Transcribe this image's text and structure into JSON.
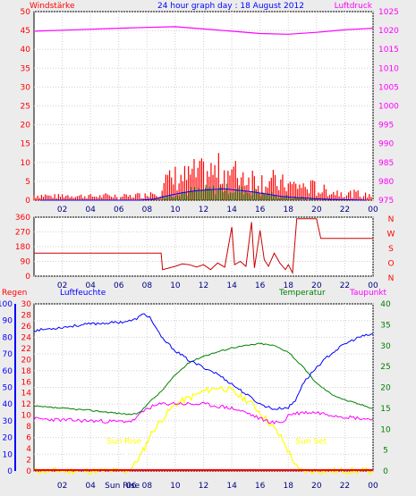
{
  "title": "24 hour graph day : 18 August 2012",
  "colors": {
    "wind": "#ff0000",
    "gust": "#ff0000",
    "wind_avg": "#0000ff",
    "wind_green": "#008000",
    "pressure": "#ff00ff",
    "direction": "#cc0000",
    "rain": "#ff0000",
    "humidity": "#0000ff",
    "temperature": "#008000",
    "dewpoint": "#ff00ff",
    "solar": "#ffff00",
    "axis_red": "#ff0000",
    "axis_magenta": "#ff00ff",
    "axis_blue": "#0000ff",
    "axis_green": "#008000",
    "grid": "#cfcfcf",
    "plot_bg": "#ffffff",
    "frame_bg": "#ececec"
  },
  "chart_data": [
    {
      "type": "bar",
      "title": "24 hour graph day : 18 August 2012",
      "left_axis_label": "Windstärke",
      "right_axis_label": "Luftdruck",
      "left_ylim": [
        0,
        50
      ],
      "left_ticks": [
        "0",
        "5",
        "10",
        "15",
        "20",
        "25",
        "30",
        "35",
        "40",
        "45",
        "50"
      ],
      "right_ylim": [
        975,
        1025
      ],
      "right_ticks": [
        "975",
        "980",
        "985",
        "990",
        "995",
        "1000",
        "1005",
        "1010",
        "1015",
        "1020",
        "1025"
      ],
      "x_ticks": [
        "02",
        "04",
        "06",
        "08",
        "10",
        "12",
        "14",
        "16",
        "18",
        "20",
        "22",
        "00"
      ],
      "grid": true,
      "wind_gust_hourly": [
        1.5,
        1.2,
        1.5,
        1.3,
        1.2,
        1.4,
        1.2,
        1.5,
        2.5,
        6,
        7,
        8,
        8.5,
        9,
        8,
        7,
        6,
        5,
        4.5,
        4,
        3,
        2.5,
        2,
        1.5
      ],
      "wind_avg_hourly": [
        0,
        0,
        0,
        0,
        0,
        0,
        0,
        0,
        0.3,
        1.2,
        2,
        2.5,
        2.8,
        3,
        2.6,
        2.2,
        1.6,
        1,
        0.7,
        0.5,
        0.3,
        0.2,
        0.1,
        0
      ],
      "pressure_points": [
        [
          0,
          1019.8
        ],
        [
          3,
          1020.2
        ],
        [
          6,
          1020.6
        ],
        [
          8,
          1020.8
        ],
        [
          10,
          1021.0
        ],
        [
          12,
          1020.4
        ],
        [
          14,
          1019.8
        ],
        [
          16,
          1019.2
        ],
        [
          18,
          1019.0
        ],
        [
          20,
          1019.5
        ],
        [
          22,
          1020.2
        ],
        [
          24,
          1020.6
        ]
      ]
    },
    {
      "type": "line",
      "left_ylim": [
        0,
        360
      ],
      "left_ticks": [
        "0",
        "90",
        "180",
        "270",
        "360"
      ],
      "right_labels": [
        "N",
        "W",
        "S",
        "O",
        "N"
      ],
      "x_ticks": [
        "02",
        "04",
        "06",
        "08",
        "10",
        "12",
        "14",
        "16",
        "18",
        "20",
        "22",
        "00"
      ],
      "grid": true,
      "direction_points": [
        [
          0,
          140
        ],
        [
          9,
          140
        ],
        [
          9.1,
          40
        ],
        [
          10,
          60
        ],
        [
          10.5,
          75
        ],
        [
          11,
          70
        ],
        [
          11.5,
          55
        ],
        [
          12,
          70
        ],
        [
          12.5,
          40
        ],
        [
          13,
          80
        ],
        [
          13.5,
          55
        ],
        [
          14,
          300
        ],
        [
          14.2,
          70
        ],
        [
          14.6,
          90
        ],
        [
          15,
          60
        ],
        [
          15.4,
          330
        ],
        [
          15.6,
          50
        ],
        [
          16,
          280
        ],
        [
          16.3,
          100
        ],
        [
          16.6,
          60
        ],
        [
          17,
          140
        ],
        [
          17.4,
          80
        ],
        [
          17.8,
          40
        ],
        [
          18,
          70
        ],
        [
          18.3,
          20
        ],
        [
          18.6,
          350
        ],
        [
          20,
          350
        ],
        [
          20.3,
          230
        ],
        [
          24,
          230
        ]
      ]
    },
    {
      "type": "line",
      "left_axis_label": "Regen",
      "humidity_axis_label": "Luftfeuchte",
      "temperature_axis_label": "Temperatur",
      "dewpoint_axis_label": "Taupunkt",
      "humidity_ylim": [
        0,
        100
      ],
      "humidity_ticks": [
        "0",
        "10",
        "20",
        "30",
        "40",
        "50",
        "60",
        "70",
        "80",
        "90",
        "100"
      ],
      "rain_ylim": [
        0,
        30
      ],
      "rain_ticks": [
        "0",
        "2",
        "4",
        "6",
        "8",
        "10",
        "12",
        "14",
        "16",
        "18",
        "20",
        "22",
        "24",
        "26",
        "28",
        "30"
      ],
      "temp_ylim": [
        0,
        40
      ],
      "temp_ticks": [
        "0",
        "5",
        "10",
        "15",
        "20",
        "25",
        "30",
        "35",
        "40"
      ],
      "x_ticks": [
        "02",
        "04",
        "Sun Rise",
        "06",
        "08",
        "10",
        "12",
        "14",
        "16",
        "18",
        "20",
        "22",
        "00"
      ],
      "annotations": [
        "Sun Rise",
        "Sun Set"
      ],
      "grid": true,
      "humidity_points": [
        [
          0,
          84
        ],
        [
          2,
          86
        ],
        [
          4,
          88
        ],
        [
          6,
          89
        ],
        [
          7,
          90
        ],
        [
          7.8,
          94
        ],
        [
          8.2,
          92
        ],
        [
          9,
          80
        ],
        [
          10,
          72
        ],
        [
          11,
          66
        ],
        [
          12,
          62
        ],
        [
          13,
          58
        ],
        [
          14,
          52
        ],
        [
          15,
          46
        ],
        [
          16,
          40
        ],
        [
          17,
          37
        ],
        [
          18,
          38
        ],
        [
          18.5,
          42
        ],
        [
          19,
          52
        ],
        [
          20,
          62
        ],
        [
          21,
          70
        ],
        [
          22,
          76
        ],
        [
          23,
          80
        ],
        [
          24,
          82
        ]
      ],
      "temperature_points": [
        [
          0,
          15.5
        ],
        [
          2,
          15
        ],
        [
          4,
          14.5
        ],
        [
          6,
          13.8
        ],
        [
          7,
          13.5
        ],
        [
          7.5,
          14
        ],
        [
          8,
          16
        ],
        [
          9,
          19
        ],
        [
          10,
          23
        ],
        [
          11,
          26
        ],
        [
          12,
          27.5
        ],
        [
          13,
          28.5
        ],
        [
          14,
          29.5
        ],
        [
          15,
          30
        ],
        [
          16,
          30.5
        ],
        [
          17,
          30
        ],
        [
          18,
          28.5
        ],
        [
          19,
          25
        ],
        [
          20,
          21
        ],
        [
          21,
          18.5
        ],
        [
          22,
          17
        ],
        [
          23,
          16
        ],
        [
          24,
          15
        ]
      ],
      "dewpoint_points": [
        [
          0,
          12.5
        ],
        [
          2,
          12.2
        ],
        [
          4,
          12
        ],
        [
          6,
          11.8
        ],
        [
          7,
          12
        ],
        [
          8,
          15
        ],
        [
          9,
          16
        ],
        [
          10,
          16.2
        ],
        [
          11,
          16
        ],
        [
          12,
          16
        ],
        [
          13,
          15.5
        ],
        [
          14,
          15
        ],
        [
          15,
          14
        ],
        [
          16,
          12.5
        ],
        [
          17,
          11.5
        ],
        [
          17.8,
          12
        ],
        [
          18,
          13.5
        ],
        [
          19,
          14
        ],
        [
          20,
          14
        ],
        [
          22,
          13
        ],
        [
          24,
          12.3
        ]
      ],
      "solar_points": [
        [
          0,
          0
        ],
        [
          6.5,
          0
        ],
        [
          7,
          1
        ],
        [
          7.6,
          4
        ],
        [
          8.3,
          9
        ],
        [
          9.2,
          13
        ],
        [
          10,
          16
        ],
        [
          11,
          17.5
        ],
        [
          12,
          19
        ],
        [
          13,
          20
        ],
        [
          13.8,
          19.5
        ],
        [
          14.5,
          18
        ],
        [
          15.3,
          16.5
        ],
        [
          16,
          14
        ],
        [
          16.8,
          11
        ],
        [
          17.5,
          8
        ],
        [
          18.2,
          3.5
        ],
        [
          18.7,
          0.2
        ],
        [
          19,
          0
        ],
        [
          24,
          0
        ]
      ],
      "sunrise_hour": 6.5,
      "sunset_hour": 19.5
    }
  ]
}
